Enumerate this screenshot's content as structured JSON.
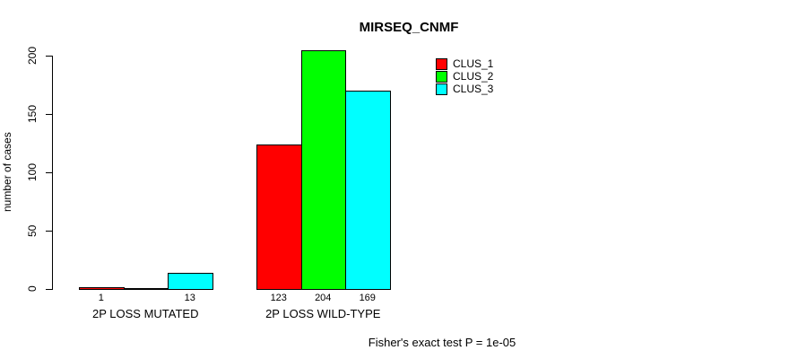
{
  "chart_data": {
    "type": "bar",
    "title": "MIRSEQ_CNMF",
    "ylabel": "number of cases",
    "ylim": [
      0,
      200
    ],
    "yticks": [
      0,
      50,
      100,
      150,
      200
    ],
    "grid": false,
    "legend_position": "top-right",
    "categories": [
      "2P LOSS MUTATED",
      "2P LOSS WILD-TYPE"
    ],
    "series": [
      {
        "name": "CLUS_1",
        "color": "#ff0000",
        "values": [
          1,
          123
        ]
      },
      {
        "name": "CLUS_2",
        "color": "#00ff00",
        "values": [
          0,
          204
        ]
      },
      {
        "name": "CLUS_3",
        "color": "#00ffff",
        "values": [
          13,
          169
        ]
      }
    ],
    "bar_value_labels": [
      [
        "1",
        "",
        "13"
      ],
      [
        "123",
        "204",
        "169"
      ]
    ],
    "footnote": "Fisher's exact test P = 1e-05"
  }
}
